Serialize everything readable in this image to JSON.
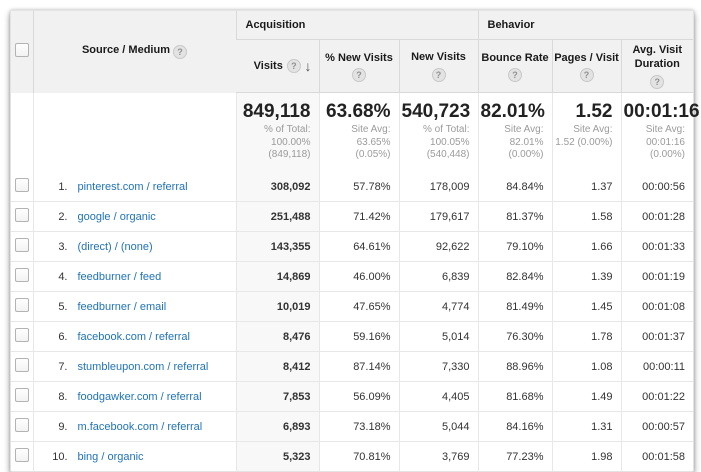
{
  "icons": {
    "help": "?",
    "sort_desc": "↓"
  },
  "colors": {
    "link_blue": "#1f73b7",
    "header_bg": "#f1f1f1",
    "sorted_column_bg": "#f8f8f8",
    "row_border": "#e7e7e7",
    "summary_subtext": "#9b9b9b"
  },
  "header": {
    "source_label": "Source / Medium",
    "groups": [
      {
        "label": "Acquisition"
      },
      {
        "label": "Behavior"
      }
    ],
    "columns": [
      {
        "label": "Visits"
      },
      {
        "label": "% New Visits"
      },
      {
        "label": "New Visits"
      },
      {
        "label": "Bounce Rate"
      },
      {
        "label": "Pages / Visit"
      },
      {
        "label": "Avg. Visit Duration"
      }
    ]
  },
  "summary": {
    "visits": {
      "value": "849,118",
      "sub": [
        "% of Total:",
        "100.00%",
        "(849,118)"
      ]
    },
    "pct_new": {
      "value": "63.68%",
      "sub": [
        "Site Avg:",
        "63.65%",
        "(0.05%)"
      ]
    },
    "new_visits": {
      "value": "540,723",
      "sub": [
        "% of Total:",
        "100.05%",
        "(540,448)"
      ]
    },
    "bounce": {
      "value": "82.01%",
      "sub": [
        "Site Avg:",
        "82.01%",
        "(0.00%)"
      ]
    },
    "pages": {
      "value": "1.52",
      "sub": [
        "Site Avg:",
        "1.52 (0.00%)",
        ""
      ]
    },
    "duration": {
      "value": "00:01:16",
      "sub": [
        "Site Avg:",
        "00:01:16",
        "(0.00%)"
      ]
    }
  },
  "rows": [
    {
      "rank": "1.",
      "source": "pinterest.com / referral",
      "visits": "308,092",
      "pct_new": "57.78%",
      "new_visits": "178,009",
      "bounce": "84.84%",
      "pages": "1.37",
      "duration": "00:00:56"
    },
    {
      "rank": "2.",
      "source": "google / organic",
      "visits": "251,488",
      "pct_new": "71.42%",
      "new_visits": "179,617",
      "bounce": "81.37%",
      "pages": "1.58",
      "duration": "00:01:28"
    },
    {
      "rank": "3.",
      "source": "(direct) / (none)",
      "visits": "143,355",
      "pct_new": "64.61%",
      "new_visits": "92,622",
      "bounce": "79.10%",
      "pages": "1.66",
      "duration": "00:01:33"
    },
    {
      "rank": "4.",
      "source": "feedburner / feed",
      "visits": "14,869",
      "pct_new": "46.00%",
      "new_visits": "6,839",
      "bounce": "82.84%",
      "pages": "1.39",
      "duration": "00:01:19"
    },
    {
      "rank": "5.",
      "source": "feedburner / email",
      "visits": "10,019",
      "pct_new": "47.65%",
      "new_visits": "4,774",
      "bounce": "81.49%",
      "pages": "1.45",
      "duration": "00:01:08"
    },
    {
      "rank": "6.",
      "source": "facebook.com / referral",
      "visits": "8,476",
      "pct_new": "59.16%",
      "new_visits": "5,014",
      "bounce": "76.30%",
      "pages": "1.78",
      "duration": "00:01:37"
    },
    {
      "rank": "7.",
      "source": "stumbleupon.com / referral",
      "visits": "8,412",
      "pct_new": "87.14%",
      "new_visits": "7,330",
      "bounce": "88.96%",
      "pages": "1.08",
      "duration": "00:00:11"
    },
    {
      "rank": "8.",
      "source": "foodgawker.com / referral",
      "visits": "7,853",
      "pct_new": "56.09%",
      "new_visits": "4,405",
      "bounce": "81.68%",
      "pages": "1.49",
      "duration": "00:01:22"
    },
    {
      "rank": "9.",
      "source": "m.facebook.com / referral",
      "visits": "6,893",
      "pct_new": "73.18%",
      "new_visits": "5,044",
      "bounce": "84.16%",
      "pages": "1.31",
      "duration": "00:00:57"
    },
    {
      "rank": "10.",
      "source": "bing / organic",
      "visits": "5,323",
      "pct_new": "70.81%",
      "new_visits": "3,769",
      "bounce": "77.23%",
      "pages": "1.98",
      "duration": "00:01:58"
    }
  ]
}
